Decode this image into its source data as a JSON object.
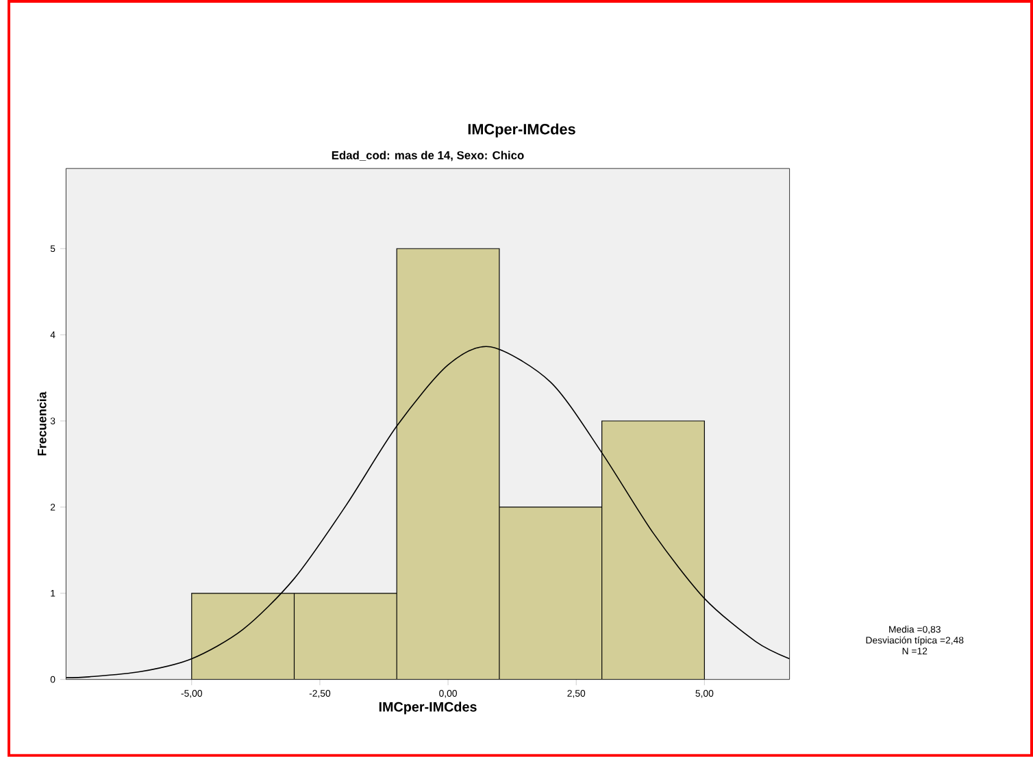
{
  "chart_data": {
    "type": "histogram",
    "title": "IMCper-IMCdes",
    "subtitle": "Edad_cod: mas de 14, Sexo: Chico",
    "xlabel": "IMCper-IMCdes",
    "ylabel": "Frecuencia",
    "bins": [
      -5,
      -3,
      -1,
      1,
      3,
      5
    ],
    "values": [
      1,
      1,
      5,
      2,
      3
    ],
    "color": "#d3ce97",
    "series": [
      {
        "type": "line",
        "color": "#000000",
        "x": [
          -7.45,
          -7,
          -6,
          -5,
          -4,
          -3,
          -2,
          -1,
          0,
          0.83,
          2,
          3,
          4,
          5,
          6,
          6.66
        ],
        "values": [
          0.02,
          0.03,
          0.09,
          0.24,
          0.58,
          1.17,
          2.01,
          2.94,
          3.65,
          3.86,
          3.45,
          2.63,
          1.7,
          0.94,
          0.44,
          0.24
        ]
      }
    ],
    "xlim": [
      -7.45,
      6.66
    ],
    "ylim": [
      0,
      5.93
    ],
    "xticks": [
      {
        "value": -5,
        "label": "-5,00"
      },
      {
        "value": -2.5,
        "label": "-2,50"
      },
      {
        "value": 0,
        "label": "0,00"
      },
      {
        "value": 2.5,
        "label": "2,50"
      },
      {
        "value": 5,
        "label": "5,00"
      }
    ],
    "yticks": [
      0,
      1,
      2,
      3,
      4,
      5
    ],
    "annotations": [
      "Media =0,83",
      "Desviación típica =2,48",
      "N =12"
    ]
  }
}
